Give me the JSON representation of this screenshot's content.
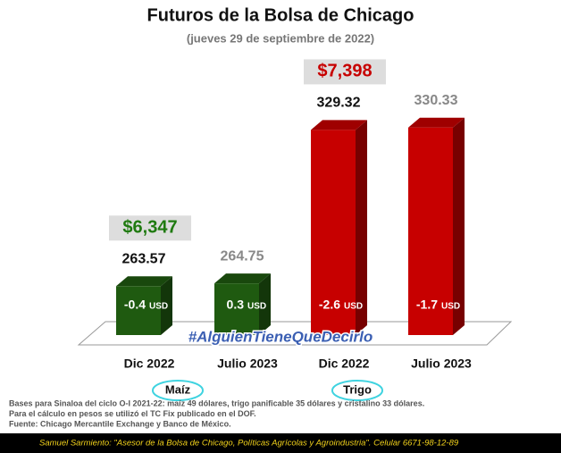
{
  "chart_data": {
    "type": "bar3d",
    "title": "Futuros de la Bolsa de Chicago",
    "subtitle": "(jueves 29 de septiembre de 2022)",
    "categories": [
      "Dic 2022",
      "Julio 2023",
      "Dic 2022",
      "Julio 2023"
    ],
    "values": [
      263.57,
      264.75,
      329.32,
      330.33
    ],
    "colors": [
      "#1f5a10",
      "#1f5a10",
      "#c70000",
      "#c70000"
    ],
    "changes": [
      -0.4,
      0.3,
      -2.6,
      -1.7
    ],
    "change_unit": "USD",
    "groups": [
      "Maíz",
      "Trigo"
    ],
    "peso_prices": [
      {
        "value": 6347,
        "label": "$6,347"
      },
      {
        "value": 7398,
        "label": "$7,398"
      }
    ],
    "ylim": [
      243,
      340
    ],
    "hashtag": "#AlguienTieneQueDecirlo",
    "notes": [
      "Bases para Sinaloa del ciclo O-I 2021-22: maíz 49 dólares, trigo panificable 35 dólares y cristalino 33 dólares.",
      "Para el cálculo en pesos se utilizó el TC Fix publicado en el DOF.",
      "Fuente: Chicago Mercantile Exchange y Banco de México."
    ],
    "footer": "Samuel Sarmiento: \"Asesor de la Bolsa de Chicago, Políticas Agrícolas y Agroindustria\". Celular 6671-98-12-89"
  }
}
